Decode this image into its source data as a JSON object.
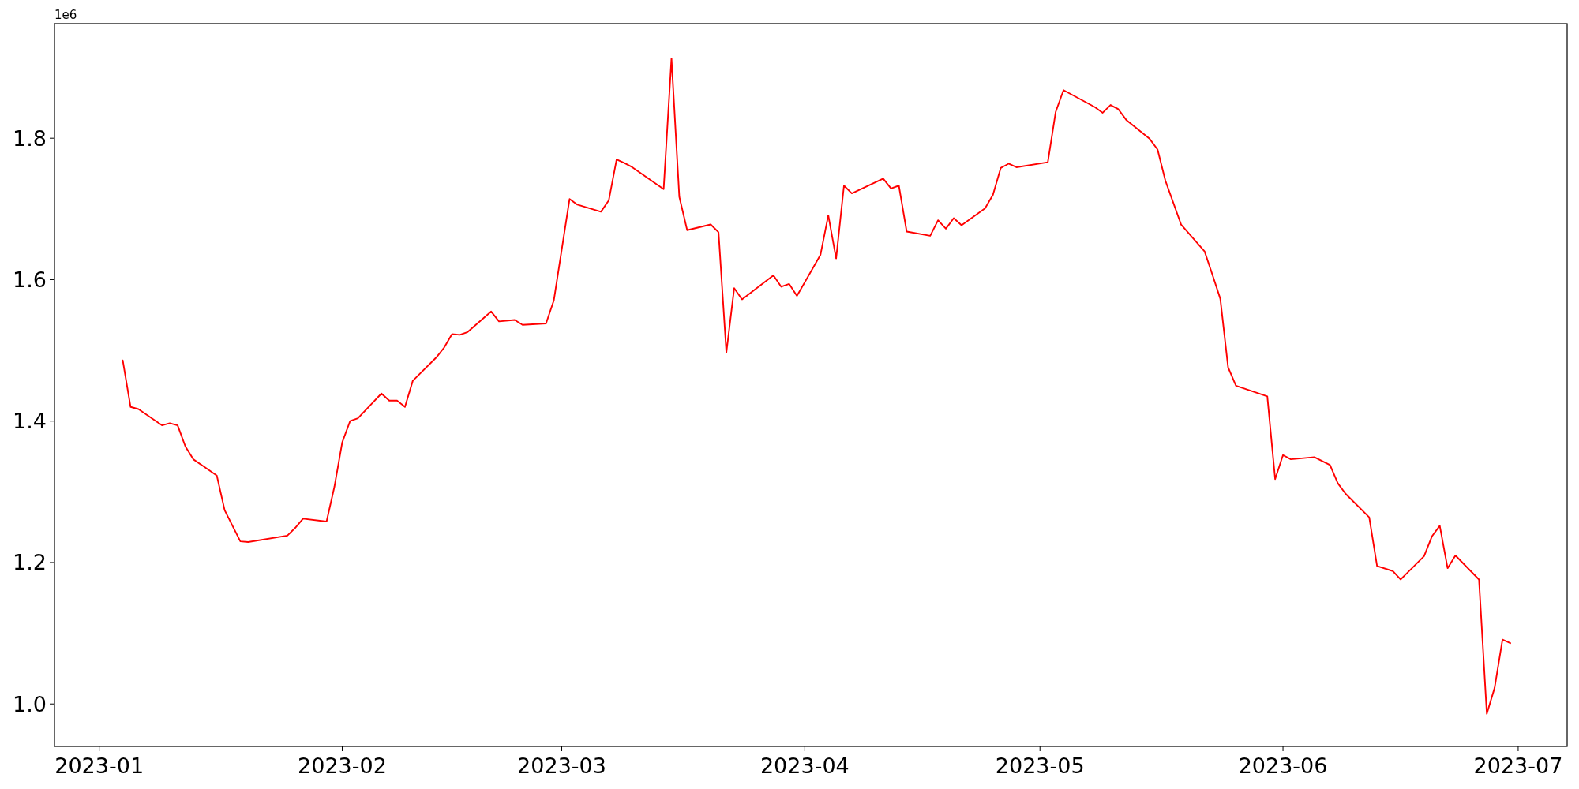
{
  "chart_data": {
    "type": "line",
    "annotations": [
      "1e6"
    ],
    "x": [
      "2023-01-04",
      "2023-01-05",
      "2023-01-06",
      "2023-01-09",
      "2023-01-10",
      "2023-01-11",
      "2023-01-12",
      "2023-01-13",
      "2023-01-16",
      "2023-01-17",
      "2023-01-19",
      "2023-01-20",
      "2023-01-25",
      "2023-01-26",
      "2023-01-27",
      "2023-01-30",
      "2023-01-31",
      "2023-02-01",
      "2023-02-02",
      "2023-02-03",
      "2023-02-06",
      "2023-02-07",
      "2023-02-08",
      "2023-02-09",
      "2023-02-10",
      "2023-02-13",
      "2023-02-14",
      "2023-02-15",
      "2023-02-16",
      "2023-02-17",
      "2023-02-20",
      "2023-02-21",
      "2023-02-23",
      "2023-02-24",
      "2023-02-27",
      "2023-02-28",
      "2023-03-02",
      "2023-03-03",
      "2023-03-06",
      "2023-03-07",
      "2023-03-08",
      "2023-03-09",
      "2023-03-10",
      "2023-03-14",
      "2023-03-15",
      "2023-03-16",
      "2023-03-17",
      "2023-03-20",
      "2023-03-21",
      "2023-03-22",
      "2023-03-23",
      "2023-03-24",
      "2023-03-28",
      "2023-03-29",
      "2023-03-30",
      "2023-03-31",
      "2023-04-03",
      "2023-04-04",
      "2023-04-05",
      "2023-04-06",
      "2023-04-07",
      "2023-04-11",
      "2023-04-12",
      "2023-04-13",
      "2023-04-14",
      "2023-04-17",
      "2023-04-18",
      "2023-04-19",
      "2023-04-20",
      "2023-04-21",
      "2023-04-24",
      "2023-04-25",
      "2023-04-26",
      "2023-04-27",
      "2023-04-28",
      "2023-05-02",
      "2023-05-03",
      "2023-05-04",
      "2023-05-08",
      "2023-05-09",
      "2023-05-10",
      "2023-05-11",
      "2023-05-12",
      "2023-05-15",
      "2023-05-16",
      "2023-05-17",
      "2023-05-19",
      "2023-05-22",
      "2023-05-23",
      "2023-05-24",
      "2023-05-25",
      "2023-05-26",
      "2023-05-30",
      "2023-05-31",
      "2023-06-01",
      "2023-06-02",
      "2023-06-05",
      "2023-06-07",
      "2023-06-08",
      "2023-06-09",
      "2023-06-12",
      "2023-06-13",
      "2023-06-15",
      "2023-06-16",
      "2023-06-19",
      "2023-06-20",
      "2023-06-21",
      "2023-06-22",
      "2023-06-23",
      "2023-06-26",
      "2023-06-27",
      "2023-06-28",
      "2023-06-29",
      "2023-06-30"
    ],
    "series": [
      {
        "color": "#ff0000",
        "values": [
          1.486,
          1.42,
          1.417,
          1.394,
          1.397,
          1.394,
          1.364,
          1.346,
          1.323,
          1.274,
          1.23,
          1.229,
          1.238,
          1.249,
          1.262,
          1.258,
          1.307,
          1.37,
          1.4,
          1.404,
          1.439,
          1.429,
          1.429,
          1.42,
          1.457,
          1.49,
          1.504,
          1.523,
          1.522,
          1.526,
          1.555,
          1.541,
          1.543,
          1.536,
          1.538,
          1.571,
          1.714,
          1.706,
          1.696,
          1.712,
          1.77,
          1.765,
          1.759,
          1.728,
          1.913,
          1.717,
          1.67,
          1.678,
          1.667,
          1.497,
          1.588,
          1.572,
          1.606,
          1.59,
          1.594,
          1.577,
          1.635,
          1.691,
          1.63,
          1.733,
          1.722,
          1.743,
          1.729,
          1.733,
          1.668,
          1.662,
          1.684,
          1.672,
          1.687,
          1.677,
          1.701,
          1.72,
          1.758,
          1.764,
          1.759,
          1.766,
          1.837,
          1.868,
          1.844,
          1.836,
          1.847,
          1.841,
          1.826,
          1.799,
          1.784,
          1.74,
          1.678,
          1.64,
          1.607,
          1.573,
          1.476,
          1.45,
          1.435,
          1.318,
          1.352,
          1.346,
          1.349,
          1.338,
          1.312,
          1.297,
          1.264,
          1.195,
          1.188,
          1.176,
          1.209,
          1.237,
          1.252,
          1.192,
          1.21,
          1.176,
          0.986,
          1.023,
          1.091,
          1.086
        ]
      }
    ],
    "xlim": [
      "2022-12-26T07:00",
      "2023-07-07T06:00"
    ],
    "xticks": [
      "2023-01",
      "2023-02",
      "2023-03",
      "2023-04",
      "2023-05",
      "2023-06",
      "2023-07"
    ],
    "ylim": [
      0.94,
      1.962
    ],
    "yticks": [
      {
        "value": 1,
        "label": "1.0"
      },
      1.2,
      1.4,
      1.6,
      1.8
    ],
    "grid": false,
    "marker": "none",
    "line_style": "solid"
  }
}
